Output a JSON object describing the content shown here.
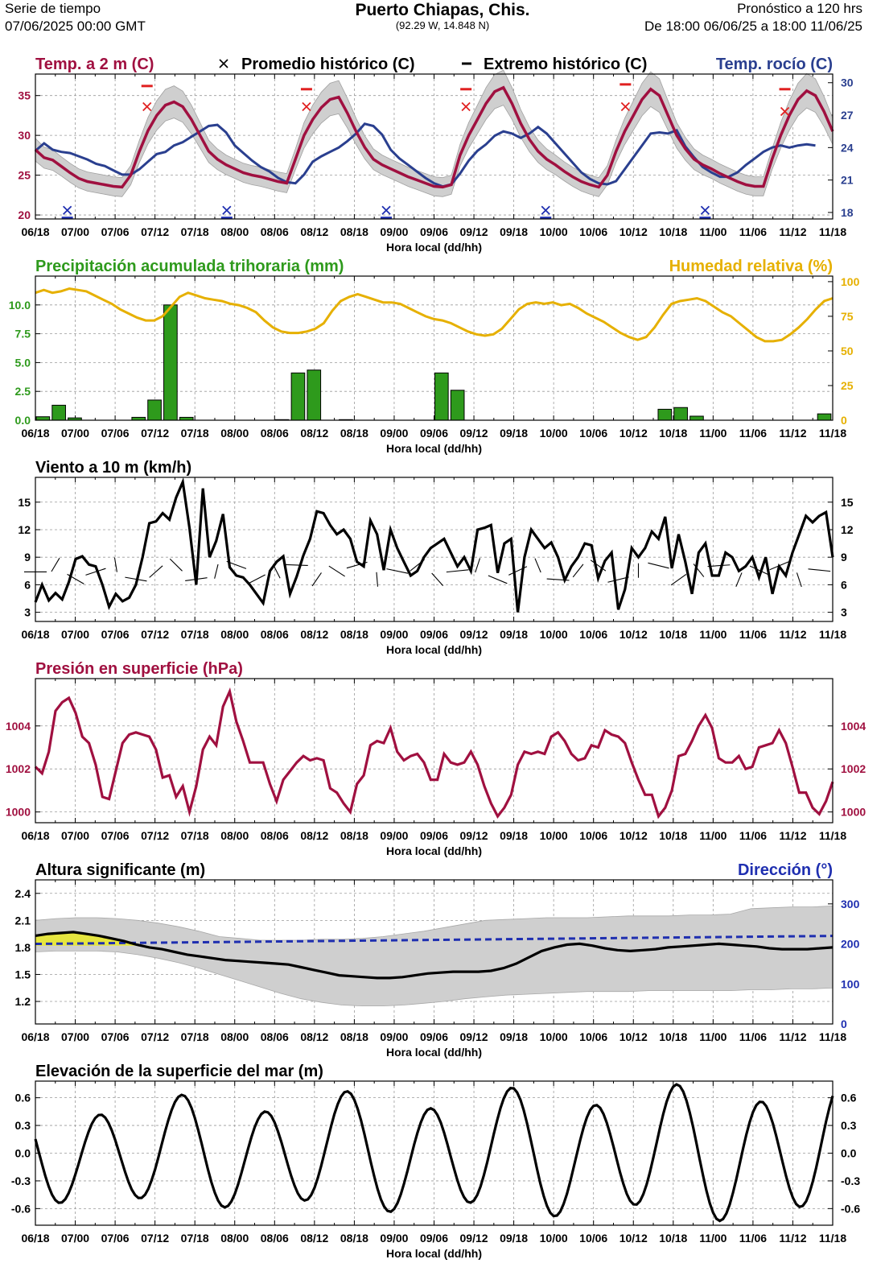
{
  "header": {
    "left_line1": "Serie de tiempo",
    "left_line2": "07/06/2025 00:00 GMT",
    "title": "Puerto Chiapas,  Chis.",
    "coords": "(92.29 W, 14.848 N)",
    "right_line1": "Pronóstico a 120 hrs",
    "right_line2": "De 18:00 06/06/25 a 18:00 11/06/25"
  },
  "colors": {
    "temp": "#a01040",
    "dew": "#2a3f8f",
    "precip": "#2e9a1c",
    "humidity": "#e6b000",
    "pressure": "#a01040",
    "wave_dir": "#1f2fb0",
    "band": "#cfcfcf",
    "hist_avg": "#e02020",
    "hist_min": "#1f2fb0",
    "highlight": "#e6e640"
  },
  "chart_data": [
    {
      "id": "temp",
      "type": "line",
      "title": "Temp. a 2 m (C)",
      "title_right": "Temp. rocío (C)",
      "legend_avg": "Promedio histórico (C)",
      "legend_ext": "Extremo histórico (C)",
      "xlabel": "Hora local (dd/hh)",
      "x_ticks": [
        "06/18",
        "07/00",
        "07/06",
        "07/12",
        "07/18",
        "08/00",
        "08/06",
        "08/12",
        "08/18",
        "09/00",
        "09/06",
        "09/12",
        "09/18",
        "10/00",
        "10/06",
        "10/12",
        "10/18",
        "11/00",
        "11/06",
        "11/12",
        "11/18"
      ],
      "ylim": [
        19.5,
        37.7
      ],
      "y_ticks": [
        20,
        25,
        30,
        35
      ],
      "y2lim": [
        17.4,
        30.8
      ],
      "y2_ticks": [
        18,
        21,
        24,
        27,
        30
      ],
      "series": [
        {
          "axis": "left",
          "values": [
            28.2,
            27.2,
            26.9,
            26.1,
            25.3,
            24.6,
            24.2,
            24.0,
            23.8,
            23.6,
            23.5,
            25.0,
            28.0,
            30.6,
            32.5,
            33.8,
            34.2,
            33.6,
            32.0,
            30.0,
            28.0,
            27.0,
            26.3,
            25.8,
            25.3,
            25.0,
            24.8,
            24.5,
            24.2,
            24.0,
            27.0,
            30.0,
            32.0,
            33.5,
            34.5,
            34.8,
            32.8,
            30.5,
            28.5,
            27.0,
            26.3,
            25.8,
            25.3,
            24.8,
            24.4,
            24.0,
            23.6,
            23.5,
            23.8,
            27.5,
            30.0,
            32.0,
            34.0,
            35.5,
            36.0,
            34.0,
            31.5,
            29.5,
            28.0,
            27.0,
            26.3,
            25.5,
            24.8,
            24.2,
            23.8,
            23.5,
            25.0,
            28.0,
            30.5,
            32.5,
            34.5,
            35.8,
            35.0,
            32.5,
            30.0,
            28.3,
            27.0,
            26.3,
            25.8,
            25.2,
            24.7,
            24.2,
            23.8,
            23.6,
            23.6,
            27.0,
            30.0,
            32.5,
            34.5,
            35.6,
            35.0,
            33.0,
            30.5
          ]
        },
        {
          "axis": "right",
          "values": [
            23.7,
            24.4,
            23.8,
            23.6,
            23.5,
            23.2,
            22.9,
            22.5,
            22.3,
            21.9,
            21.5,
            21.5,
            22.0,
            22.7,
            23.4,
            23.6,
            24.2,
            24.5,
            25.0,
            25.5,
            26.0,
            26.1,
            25.4,
            24.2,
            23.5,
            22.8,
            22.2,
            21.8,
            21.2,
            20.8,
            20.7,
            21.5,
            22.7,
            23.2,
            23.6,
            24.0,
            24.6,
            25.3,
            26.2,
            26.0,
            25.2,
            23.8,
            23.0,
            22.4,
            21.8,
            21.2,
            20.7,
            20.4,
            20.6,
            21.6,
            22.8,
            23.7,
            24.3,
            25.1,
            25.5,
            25.3,
            24.9,
            25.3,
            25.9,
            25.3,
            24.4,
            23.5,
            22.6,
            21.7,
            21.1,
            20.7,
            20.6,
            20.9,
            22.0,
            23.1,
            24.2,
            25.3,
            25.4,
            25.3,
            25.6,
            24.1,
            23.1,
            22.2,
            21.7,
            21.3,
            21.3,
            21.7,
            22.4,
            23.0,
            23.6,
            24.0,
            24.2,
            24.0,
            24.2,
            24.3,
            24.2
          ]
        }
      ],
      "hist_avg_points": [
        [
          2,
          18.2
        ],
        [
          7,
          33.6
        ],
        [
          12,
          18.2
        ],
        [
          17,
          33.6
        ],
        [
          22,
          18.2
        ],
        [
          27,
          33.6
        ],
        [
          32,
          18.2
        ],
        [
          37,
          33.6
        ],
        [
          42,
          18.2
        ],
        [
          47,
          33.0
        ]
      ],
      "hist_ext_points": [
        [
          2,
          17.5
        ],
        [
          7,
          36.2
        ],
        [
          12,
          17.5
        ],
        [
          17,
          35.8
        ],
        [
          22,
          17.5
        ],
        [
          27,
          35.8
        ],
        [
          32,
          17.5
        ],
        [
          37,
          36.4
        ],
        [
          42,
          17.5
        ],
        [
          47,
          35.8
        ]
      ]
    },
    {
      "id": "precip",
      "type": "bar",
      "title": "Precipitación acumulada trihoraria (mm)",
      "title_right": "Humedad relativa (%)",
      "xlabel": "Hora local (dd/hh)",
      "x_ticks": [
        "06/18",
        "07/00",
        "07/06",
        "07/12",
        "07/18",
        "08/00",
        "08/06",
        "08/12",
        "08/18",
        "09/00",
        "09/06",
        "09/12",
        "09/18",
        "10/00",
        "10/06",
        "10/12",
        "10/18",
        "11/00",
        "11/06",
        "11/12",
        "11/18"
      ],
      "ylim": [
        0,
        12.5
      ],
      "y_ticks": [
        "0.0",
        "2.5",
        "5.0",
        "7.5",
        "10.0"
      ],
      "y2lim": [
        0,
        104
      ],
      "y2_ticks": [
        0,
        25,
        50,
        75,
        100
      ],
      "bars": [
        0.3,
        1.3,
        0.2,
        0,
        0,
        0,
        0.25,
        1.75,
        10.0,
        0.25,
        0,
        0,
        0,
        0,
        0,
        0.05,
        4.1,
        4.35,
        0,
        0.05,
        0,
        0,
        0,
        0,
        0,
        4.1,
        2.6,
        0,
        0,
        0,
        0,
        0,
        0,
        0,
        0,
        0,
        0,
        0,
        0,
        0.95,
        1.1,
        0.35,
        0,
        0,
        0,
        0,
        0,
        0,
        0,
        0.55
      ],
      "humidity": [
        92,
        94,
        92,
        93,
        95,
        94,
        93,
        90,
        87,
        84,
        80,
        77,
        74,
        72,
        72,
        75,
        82,
        89,
        92,
        90,
        88,
        87,
        86,
        84,
        83,
        81,
        78,
        72,
        67,
        64,
        63,
        63,
        64,
        66,
        70,
        79,
        86,
        89,
        91,
        89,
        87,
        85,
        85,
        84,
        81,
        78,
        75,
        73,
        72,
        70,
        67,
        64,
        62,
        61,
        62,
        66,
        73,
        80,
        84,
        85,
        84,
        85,
        83,
        84,
        81,
        77,
        74,
        71,
        67,
        63,
        60,
        58,
        60,
        67,
        76,
        84,
        86,
        87,
        88,
        86,
        82,
        78,
        75,
        70,
        65,
        60,
        57,
        57,
        58,
        62,
        67,
        73,
        80,
        86,
        88
      ]
    },
    {
      "id": "wind",
      "type": "line",
      "title": "Viento a 10 m (km/h)",
      "xlabel": "Hora local (dd/hh)",
      "x_ticks": [
        "06/18",
        "07/00",
        "07/06",
        "07/12",
        "07/18",
        "08/00",
        "08/06",
        "08/12",
        "08/18",
        "09/00",
        "09/06",
        "09/12",
        "09/18",
        "10/00",
        "10/06",
        "10/12",
        "10/18",
        "11/00",
        "11/06",
        "11/12",
        "11/18"
      ],
      "ylim": [
        2.0,
        17.7
      ],
      "y_ticks": [
        3,
        6,
        9,
        12,
        15
      ],
      "values": [
        4.1,
        6.0,
        4.3,
        5.1,
        4.4,
        6.3,
        8.8,
        9.1,
        8.2,
        8.0,
        6.0,
        3.6,
        5.0,
        4.2,
        4.6,
        6.0,
        9.0,
        12.7,
        12.9,
        13.8,
        13.1,
        15.5,
        17.2,
        12.2,
        6.0,
        16.5,
        9.0,
        10.8,
        13.7,
        7.9,
        7.0,
        6.8,
        6.0,
        5.0,
        4.0,
        7.5,
        8.5,
        9.1,
        5.0,
        6.9,
        9.2,
        11.0,
        14.0,
        13.8,
        12.5,
        11.5,
        12.0,
        11.0,
        8.5,
        8.0,
        13.0,
        11.5,
        7.6,
        12.0,
        10.0,
        8.5,
        7.0,
        7.5,
        9.0,
        10.0,
        10.5,
        11.0,
        9.5,
        8.0,
        9.0,
        7.5,
        12.0,
        12.2,
        12.5,
        7.3,
        10.5,
        11.0,
        3.0,
        9.0,
        12.0,
        11.0,
        10.0,
        10.6,
        9.0,
        6.5,
        8.0,
        9.0,
        10.5,
        10.3,
        6.7,
        8.6,
        9.5,
        3.3,
        5.5,
        10.0,
        9.0,
        10.0,
        11.8,
        11.0,
        13.4,
        7.8,
        11.5,
        8.5,
        5.0,
        9.5,
        10.5,
        7.0,
        7.0,
        9.5,
        9.0,
        7.5,
        8.0,
        9.0,
        6.8,
        9.0,
        5.0,
        8.0,
        7.0,
        9.5,
        11.5,
        13.5,
        12.8,
        13.5,
        13.9,
        9.0
      ]
    },
    {
      "id": "pressure",
      "type": "line",
      "title": "Presión en superficie (hPa)",
      "xlabel": "Hora local (dd/hh)",
      "x_ticks": [
        "06/18",
        "07/00",
        "07/06",
        "07/12",
        "07/18",
        "08/00",
        "08/06",
        "08/12",
        "08/18",
        "09/00",
        "09/06",
        "09/12",
        "09/18",
        "10/00",
        "10/06",
        "10/12",
        "10/18",
        "11/00",
        "11/06",
        "11/12",
        "11/18"
      ],
      "ylim": [
        999.5,
        1006.2
      ],
      "y_ticks": [
        1000,
        1002,
        1004
      ],
      "values": [
        1002.1,
        1001.8,
        1002.8,
        1004.7,
        1005.1,
        1005.3,
        1004.6,
        1003.5,
        1003.2,
        1002.2,
        1000.7,
        1000.6,
        1001.9,
        1003.2,
        1003.6,
        1003.7,
        1003.6,
        1003.5,
        1002.9,
        1001.6,
        1001.7,
        1000.7,
        1001.2,
        1000.0,
        1001.2,
        1002.9,
        1003.5,
        1003.1,
        1004.9,
        1005.6,
        1004.2,
        1003.3,
        1002.3,
        1002.3,
        1002.3,
        1001.3,
        1000.5,
        1001.5,
        1001.9,
        1002.3,
        1002.6,
        1002.4,
        1002.5,
        1002.4,
        1001.1,
        1000.9,
        1000.4,
        1000.0,
        1001.3,
        1001.7,
        1003.1,
        1003.3,
        1003.2,
        1003.9,
        1002.8,
        1002.4,
        1002.6,
        1002.7,
        1002.3,
        1001.5,
        1001.5,
        1002.7,
        1002.3,
        1002.2,
        1002.3,
        1002.8,
        1002.2,
        1001.2,
        1000.4,
        999.8,
        1000.2,
        1000.8,
        1002.2,
        1002.8,
        1002.7,
        1002.8,
        1002.7,
        1003.5,
        1003.7,
        1003.3,
        1002.7,
        1002.4,
        1002.5,
        1003.1,
        1003.0,
        1003.8,
        1003.6,
        1003.5,
        1003.2,
        1002.3,
        1001.5,
        1000.8,
        1000.8,
        999.8,
        1000.2,
        1001.0,
        1002.6,
        1002.7,
        1003.3,
        1004.0,
        1004.5,
        1003.9,
        1002.5,
        1002.3,
        1002.3,
        1002.6,
        1002.0,
        1002.1,
        1003.0,
        1003.1,
        1003.2,
        1003.8,
        1003.2,
        1002.1,
        1000.9,
        1000.9,
        1000.2,
        999.9,
        1000.5,
        1001.4
      ]
    },
    {
      "id": "waves",
      "type": "line",
      "title": "Altura significante (m)",
      "title_right": "Dirección (°)",
      "xlabel": "Hora local (dd/hh)",
      "x_ticks": [
        "06/18",
        "07/00",
        "07/06",
        "07/12",
        "07/18",
        "08/00",
        "08/06",
        "08/12",
        "08/18",
        "09/00",
        "09/06",
        "09/12",
        "09/18",
        "10/00",
        "10/06",
        "10/12",
        "10/18",
        "11/00",
        "11/06",
        "11/12",
        "11/18"
      ],
      "ylim": [
        0.95,
        2.55
      ],
      "y_ticks": [
        1.2,
        1.5,
        1.8,
        2.1,
        2.4
      ],
      "y2lim": [
        0,
        360
      ],
      "y2_ticks": [
        0,
        100,
        200,
        300
      ],
      "height": [
        1.93,
        1.95,
        1.96,
        1.97,
        1.95,
        1.93,
        1.9,
        1.87,
        1.83,
        1.8,
        1.78,
        1.75,
        1.72,
        1.7,
        1.68,
        1.66,
        1.65,
        1.64,
        1.63,
        1.62,
        1.61,
        1.58,
        1.55,
        1.52,
        1.49,
        1.48,
        1.47,
        1.46,
        1.46,
        1.47,
        1.49,
        1.51,
        1.52,
        1.53,
        1.53,
        1.53,
        1.54,
        1.57,
        1.62,
        1.69,
        1.76,
        1.8,
        1.83,
        1.84,
        1.82,
        1.79,
        1.77,
        1.76,
        1.77,
        1.78,
        1.8,
        1.81,
        1.82,
        1.83,
        1.84,
        1.83,
        1.82,
        1.81,
        1.79,
        1.78,
        1.78,
        1.78,
        1.79,
        1.8
      ],
      "band_upper": [
        2.1,
        2.12,
        2.13,
        2.13,
        2.12,
        2.1,
        2.07,
        2.03,
        1.98,
        1.92,
        1.9,
        1.88,
        1.88,
        1.88,
        1.89,
        1.89,
        1.9,
        1.92,
        1.95,
        1.98,
        2.02,
        2.06,
        2.1,
        2.11,
        2.12,
        2.13,
        2.13,
        2.13,
        2.14,
        2.15,
        2.15,
        2.15,
        2.16,
        2.16,
        2.17,
        2.23,
        2.24,
        2.25,
        2.25,
        2.26
      ],
      "band_lower": [
        1.75,
        1.76,
        1.76,
        1.76,
        1.75,
        1.72,
        1.68,
        1.63,
        1.57,
        1.5,
        1.43,
        1.36,
        1.29,
        1.23,
        1.19,
        1.16,
        1.15,
        1.15,
        1.16,
        1.18,
        1.2,
        1.23,
        1.25,
        1.27,
        1.28,
        1.29,
        1.3,
        1.31,
        1.31,
        1.31,
        1.32,
        1.32,
        1.32,
        1.32,
        1.32,
        1.33,
        1.33,
        1.34,
        1.34,
        1.35
      ],
      "direction_start": 200,
      "direction_end": 220
    },
    {
      "id": "sea-level",
      "type": "line",
      "title": "Elevación de la superficie del mar (m)",
      "xlabel": "Hora local (dd/hh)",
      "x_ticks": [
        "06/18",
        "07/00",
        "07/06",
        "07/12",
        "07/18",
        "08/00",
        "08/06",
        "08/12",
        "08/18",
        "09/00",
        "09/06",
        "09/12",
        "09/18",
        "10/00",
        "10/06",
        "10/12",
        "10/18",
        "11/00",
        "11/06",
        "11/12",
        "11/18"
      ],
      "ylim": [
        -0.78,
        0.78
      ],
      "y_ticks": [
        "0.6",
        "0.3",
        "0.0",
        "-0.3",
        "-0.6"
      ],
      "tidal_constituents": [
        {
          "period_h": 12.42,
          "amplitude": 0.5,
          "phase_h": 6.6
        },
        {
          "period_h": 24.5,
          "amplitude": 0.1,
          "phase_h": 14.5
        }
      ]
    }
  ]
}
